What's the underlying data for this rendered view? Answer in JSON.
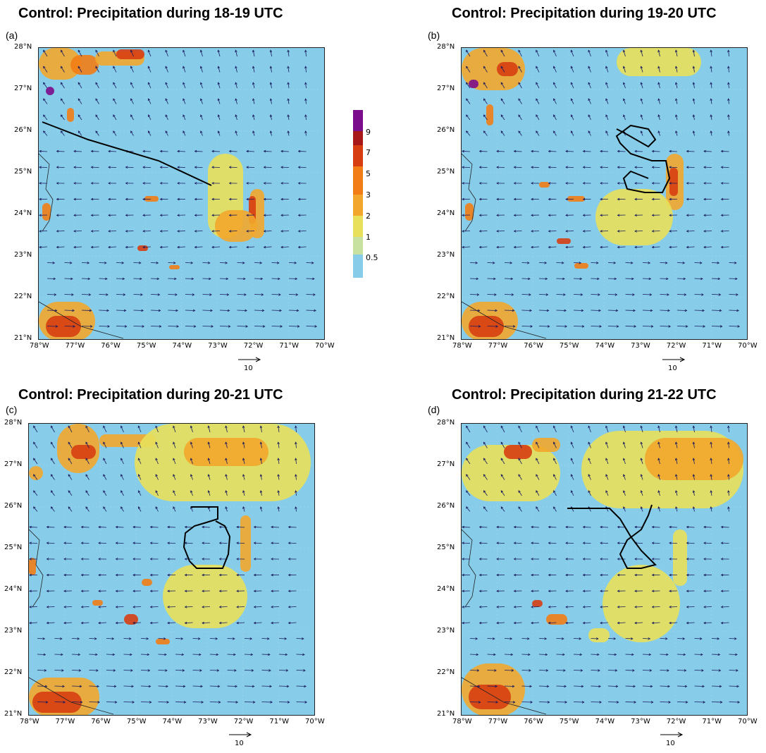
{
  "panels": [
    {
      "id": "a",
      "title": "Control: Precipitation during 18-19 UTC",
      "label": "(a)"
    },
    {
      "id": "b",
      "title": "Control: Precipitation during 19-20 UTC",
      "label": "(b)"
    },
    {
      "id": "c",
      "title": "Control: Precipitation during 20-21 UTC",
      "label": "(c)"
    },
    {
      "id": "d",
      "title": "Control: Precipitation during 21-22 UTC",
      "label": "(d)"
    }
  ],
  "axes": {
    "lat_ticks": [
      "28°N",
      "27°N",
      "26°N",
      "25°N",
      "24°N",
      "23°N",
      "22°N",
      "21°N"
    ],
    "lon_ticks": [
      "78°W",
      "77°W",
      "76°W",
      "75°W",
      "74°W",
      "73°W",
      "72°W",
      "71°W",
      "70°W"
    ]
  },
  "reference_vector": {
    "label": "10"
  },
  "colorbar": {
    "labels": [
      "9",
      "7",
      "5",
      "3",
      "2",
      "1",
      "0.5"
    ],
    "colors": [
      "#7b0c8c",
      "#a81818",
      "#d63e12",
      "#f27d16",
      "#f2a72c",
      "#e8e05a",
      "#c8e0a0",
      "#87cdea"
    ]
  },
  "colors": {
    "ocean": "#87cdea",
    "vector": "#1a1a5e",
    "track": "#000000"
  }
}
